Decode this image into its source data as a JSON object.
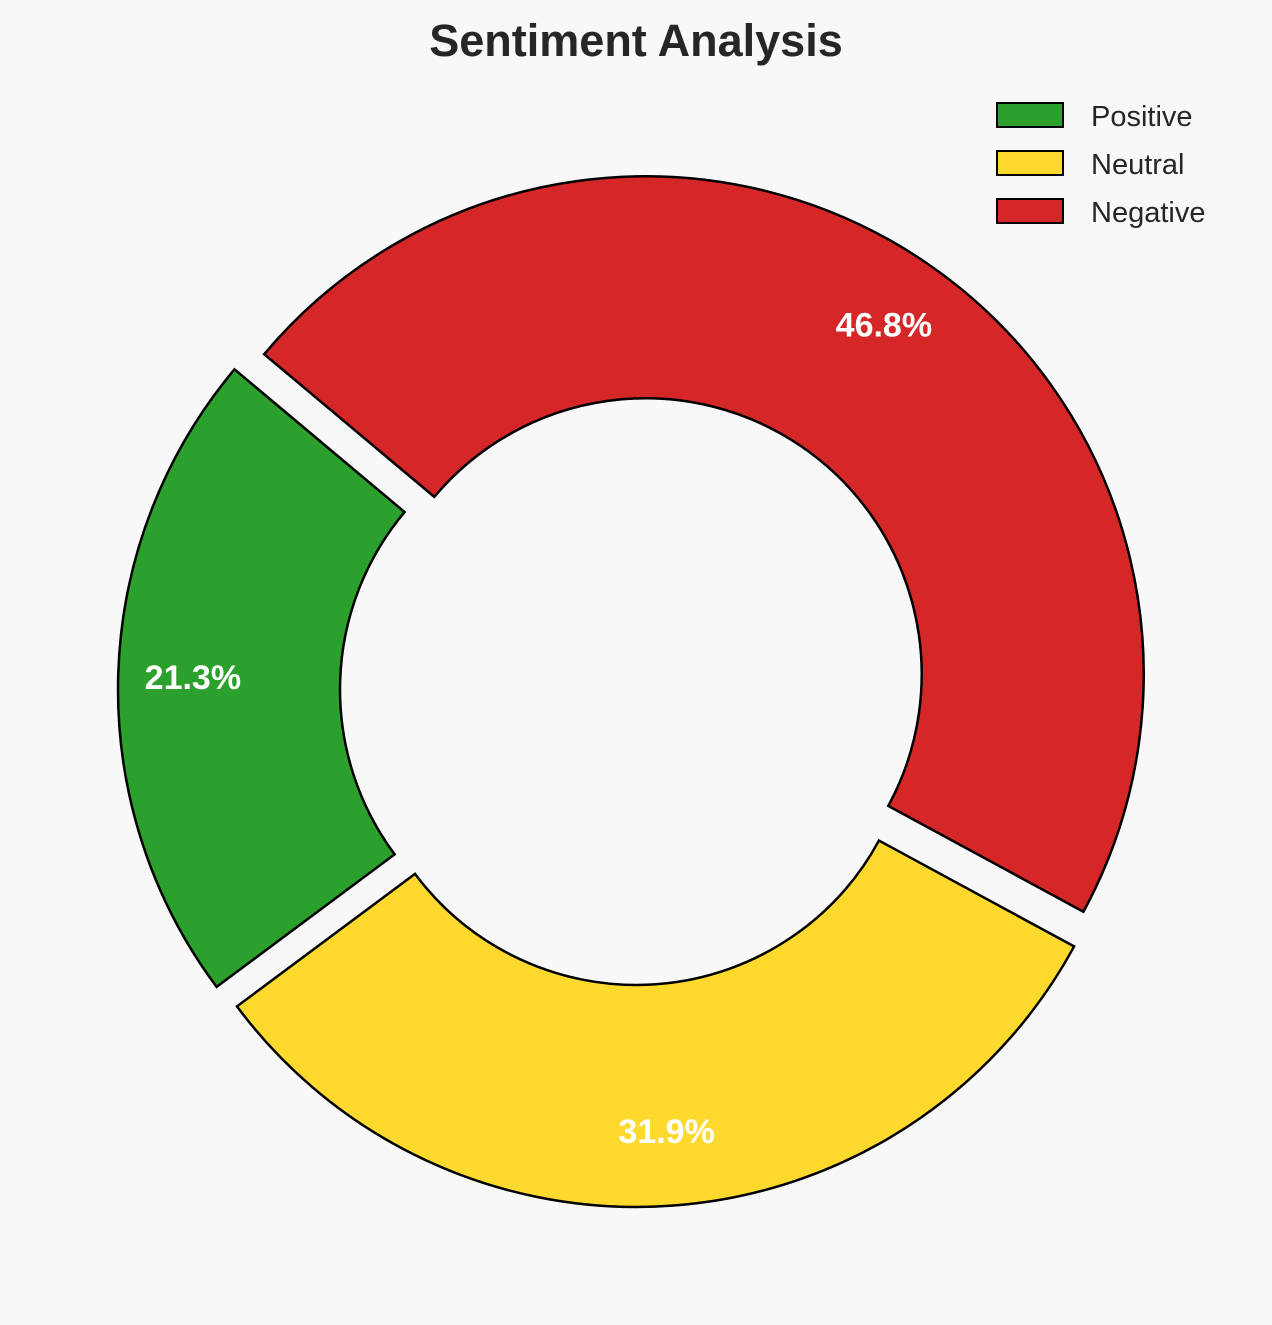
{
  "chart_data": {
    "type": "pie",
    "subtype": "donut",
    "title": "Sentiment Analysis",
    "labels": [
      "Positive",
      "Neutral",
      "Negative"
    ],
    "values": [
      21.3,
      31.9,
      46.8
    ],
    "value_labels": [
      "21.3%",
      "31.9%",
      "46.8%"
    ],
    "colors": [
      "#2ca02c",
      "#fdd92e",
      "#d62728"
    ],
    "start_angle_deg": 140,
    "direction": "counterclockwise",
    "exploded": true,
    "legend_placement": "top-right"
  }
}
